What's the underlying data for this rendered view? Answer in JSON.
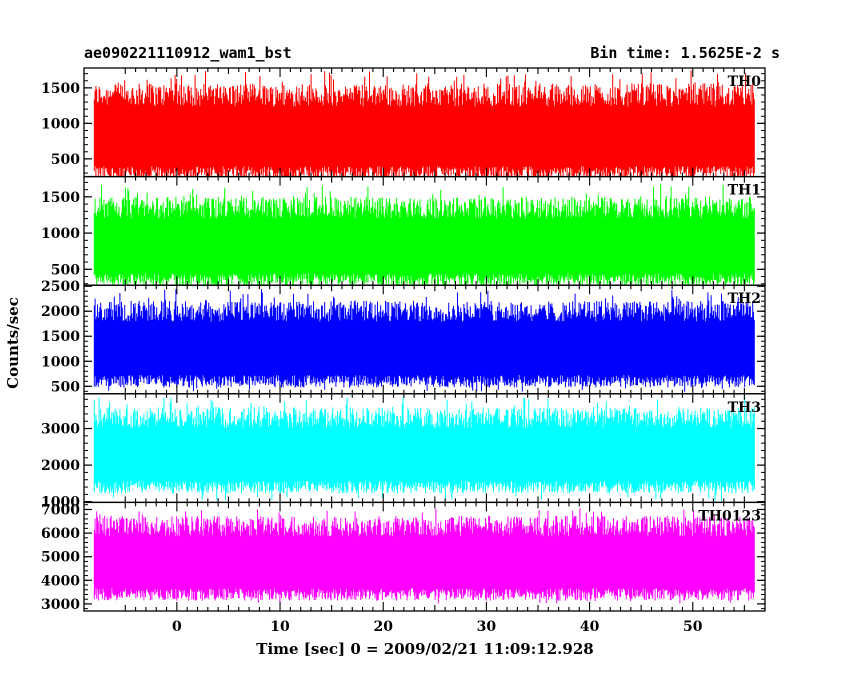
{
  "header": {
    "title": "ae090221110912_wam1_bst",
    "bin_time": "Bin time: 1.5625E-2 s"
  },
  "chart_data": {
    "type": "line",
    "xlabel": "Time [sec] 0 = 2009/02/21 11:09:12.928",
    "ylabel": "Counts/sec",
    "xlim": [
      -9,
      57
    ],
    "x_data_range": [
      -8,
      56
    ],
    "x_ticks": [
      0,
      10,
      20,
      30,
      40,
      50
    ],
    "panels": [
      {
        "name": "TH0",
        "color": "#ff0000",
        "ylim": [
          250,
          1780
        ],
        "yticks": [
          500,
          1000,
          1500
        ],
        "typical_range": [
          300,
          1400
        ],
        "peak": 1750,
        "trough": 200
      },
      {
        "name": "TH1",
        "color": "#00ff00",
        "ylim": [
          280,
          1780
        ],
        "yticks": [
          500,
          1000,
          1500
        ],
        "typical_range": [
          350,
          1350
        ],
        "peak": 1700,
        "trough": 280
      },
      {
        "name": "TH2",
        "color": "#0000ff",
        "ylim": [
          350,
          2520
        ],
        "yticks": [
          500,
          1000,
          1500,
          2000,
          2500
        ],
        "typical_range": [
          600,
          2000
        ],
        "peak": 2450,
        "trough": 380
      },
      {
        "name": "TH3",
        "color": "#00ffff",
        "ylim": [
          980,
          3950
        ],
        "yticks": [
          1000,
          2000,
          3000
        ],
        "typical_range": [
          1400,
          3300
        ],
        "peak": 3900,
        "trough": 1000
      },
      {
        "name": "TH0123",
        "color": "#ff00ff",
        "ylim": [
          2700,
          7300
        ],
        "yticks": [
          3000,
          4000,
          5000,
          6000,
          7000
        ],
        "typical_range": [
          3400,
          6300
        ],
        "peak": 7100,
        "trough": 3000
      }
    ]
  }
}
